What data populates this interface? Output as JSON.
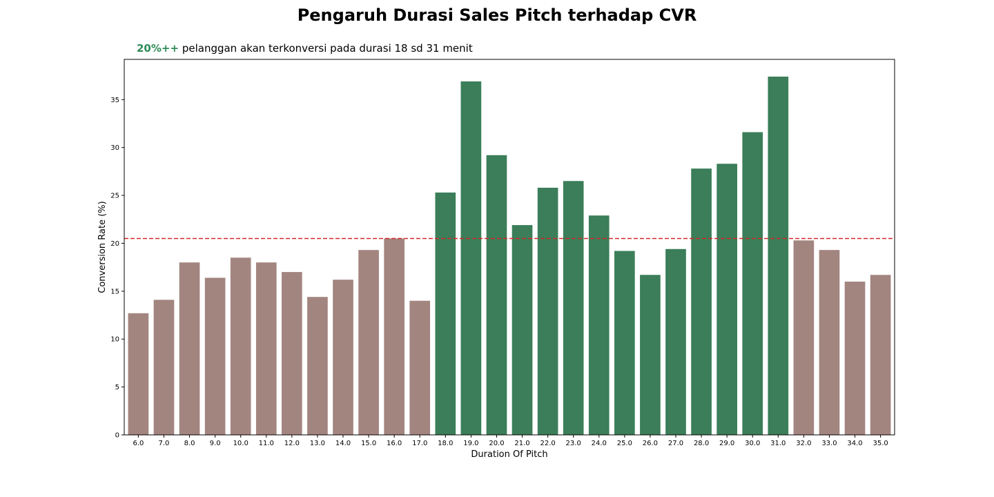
{
  "chart_data": {
    "type": "bar",
    "title": "Pengaruh Durasi Sales Pitch terhadap CVR",
    "subtitle_highlight": "20%++",
    "subtitle_text": "pelanggan akan terkonversi pada durasi 18 sd 31 menit",
    "xlabel": "Duration Of Pitch",
    "ylabel": "Conversion Rate (%)",
    "categories": [
      "6.0",
      "7.0",
      "8.0",
      "9.0",
      "10.0",
      "11.0",
      "12.0",
      "13.0",
      "14.0",
      "15.0",
      "16.0",
      "17.0",
      "18.0",
      "19.0",
      "20.0",
      "21.0",
      "22.0",
      "23.0",
      "24.0",
      "25.0",
      "26.0",
      "27.0",
      "28.0",
      "29.0",
      "30.0",
      "31.0",
      "32.0",
      "33.0",
      "34.0",
      "35.0"
    ],
    "values": [
      12.7,
      14.1,
      18.0,
      16.4,
      18.5,
      18.0,
      17.0,
      14.4,
      16.2,
      19.3,
      20.5,
      14.0,
      25.3,
      36.9,
      29.2,
      21.9,
      25.8,
      26.5,
      22.9,
      19.2,
      16.7,
      19.4,
      27.8,
      28.3,
      31.6,
      37.4,
      20.3,
      19.3,
      16.0,
      16.7
    ],
    "highlight_range": [
      "18.0",
      "31.0"
    ],
    "reference_line": 20.5,
    "ylim": [
      0,
      39.2
    ],
    "yticks": [
      0,
      5,
      10,
      15,
      20,
      25,
      30,
      35
    ],
    "grid": false,
    "colors": {
      "highlight": "#3b7e59",
      "default": "#a38580",
      "reference_line": "#d62728",
      "subtitle_highlight": "#2e8b57"
    }
  }
}
